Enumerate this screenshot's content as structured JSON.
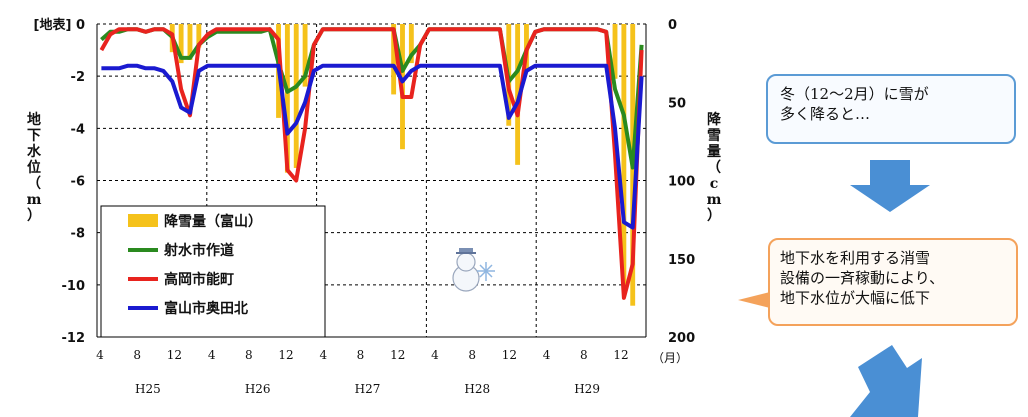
{
  "chart_data": {
    "type": "bar+line",
    "left_axis": {
      "label": "[地表] 0",
      "ticks": [
        "[地表] 0",
        "-2",
        "-4",
        "-6",
        "-8",
        "-10",
        "-12"
      ],
      "title_chars": [
        "地",
        "下",
        "水",
        "位",
        "（",
        "m",
        "）"
      ],
      "ylim": [
        -12,
        0
      ]
    },
    "right_axis": {
      "ticks": [
        "0",
        "50",
        "100",
        "150",
        "200"
      ],
      "title_chars": [
        "降",
        "雪",
        "量",
        "（",
        "c",
        "m",
        "）"
      ],
      "ylim": [
        0,
        200
      ]
    },
    "x_ticks": [
      "4",
      "8",
      "12",
      "4",
      "8",
      "12",
      "4",
      "8",
      "12",
      "4",
      "8",
      "12",
      "4",
      "8",
      "12"
    ],
    "x_unit": "（月）",
    "years": [
      "H25",
      "H26",
      "H27",
      "H28",
      "H29"
    ],
    "legend": [
      "降雪量（富山）",
      "射水市作道",
      "高岡市能町",
      "富山市奥田北"
    ],
    "colors": {
      "snow": "#f5c21b",
      "green": "#2a8a1f",
      "red": "#e8231e",
      "blue": "#1a1ad0",
      "grid": "#000000"
    },
    "series": [
      {
        "name": "射水市作道",
        "values": [
          -0.6,
          -0.3,
          -0.3,
          -0.2,
          -0.2,
          -0.3,
          -0.2,
          -0.2,
          -0.5,
          -1.3,
          -1.3,
          -0.8,
          -0.5,
          -0.3,
          -0.3,
          -0.3,
          -0.3,
          -0.3,
          -0.3,
          -0.2,
          -1.5,
          -2.6,
          -2.4,
          -2.0,
          -0.8,
          -0.2,
          -0.2,
          -0.2,
          -0.2,
          -0.2,
          -0.2,
          -0.2,
          -0.2,
          -0.2,
          -1.8,
          -1.2,
          -0.8,
          -0.2,
          -0.2,
          -0.2,
          -0.2,
          -0.2,
          -0.2,
          -0.2,
          -0.2,
          -0.2,
          -2.2,
          -1.8,
          -1.0,
          -0.3,
          -0.2,
          -0.2,
          -0.2,
          -0.2,
          -0.2,
          -0.2,
          -0.2,
          -0.3,
          -2.5,
          -3.5,
          -5.5,
          -0.8
        ]
      },
      {
        "name": "高岡市能町",
        "values": [
          -1.0,
          -0.4,
          -0.2,
          -0.2,
          -0.2,
          -0.3,
          -0.2,
          -0.2,
          -0.4,
          -2.5,
          -3.5,
          -0.8,
          -0.4,
          -0.2,
          -0.2,
          -0.2,
          -0.2,
          -0.2,
          -0.2,
          -0.2,
          -0.6,
          -5.6,
          -6.0,
          -4.0,
          -0.8,
          -0.2,
          -0.2,
          -0.2,
          -0.2,
          -0.2,
          -0.2,
          -0.2,
          -0.2,
          -0.2,
          -2.8,
          -2.8,
          -0.8,
          -0.2,
          -0.2,
          -0.2,
          -0.2,
          -0.2,
          -0.2,
          -0.2,
          -0.2,
          -0.2,
          -2.5,
          -3.5,
          -1.0,
          -0.3,
          -0.2,
          -0.2,
          -0.2,
          -0.2,
          -0.2,
          -0.2,
          -0.2,
          -0.3,
          -5.0,
          -10.5,
          -9.2,
          -1.0
        ]
      },
      {
        "name": "富山市奥田北",
        "values": [
          -1.7,
          -1.7,
          -1.7,
          -1.6,
          -1.6,
          -1.7,
          -1.7,
          -1.8,
          -2.2,
          -3.2,
          -3.4,
          -1.8,
          -1.6,
          -1.6,
          -1.6,
          -1.6,
          -1.6,
          -1.6,
          -1.6,
          -1.6,
          -1.6,
          -4.2,
          -3.8,
          -3.0,
          -1.8,
          -1.6,
          -1.6,
          -1.6,
          -1.6,
          -1.6,
          -1.6,
          -1.6,
          -1.6,
          -1.6,
          -2.2,
          -1.8,
          -1.6,
          -1.6,
          -1.6,
          -1.6,
          -1.6,
          -1.6,
          -1.6,
          -1.6,
          -1.6,
          -1.6,
          -3.6,
          -3.0,
          -1.8,
          -1.6,
          -1.6,
          -1.6,
          -1.6,
          -1.6,
          -1.6,
          -1.6,
          -1.6,
          -1.6,
          -4.0,
          -7.6,
          -7.8,
          -2.0
        ]
      }
    ],
    "snow": {
      "name": "降雪量（富山）",
      "values": [
        0,
        0,
        0,
        0,
        0,
        0,
        0,
        0,
        18,
        25,
        23,
        15,
        0,
        0,
        0,
        0,
        0,
        0,
        0,
        0,
        60,
        95,
        92,
        40,
        0,
        0,
        0,
        0,
        0,
        0,
        0,
        0,
        0,
        45,
        80,
        25,
        0,
        0,
        0,
        0,
        0,
        0,
        0,
        0,
        0,
        0,
        65,
        90,
        30,
        0,
        0,
        0,
        0,
        0,
        0,
        0,
        0,
        0,
        35,
        170,
        180,
        0
      ]
    }
  },
  "callouts": {
    "first": [
      "冬（12～2月）に雪が",
      "多く降ると…"
    ],
    "second": [
      "地下水を利用する消雪",
      "設備の一斉稼動により、",
      "地下水位が大幅に低下"
    ]
  }
}
